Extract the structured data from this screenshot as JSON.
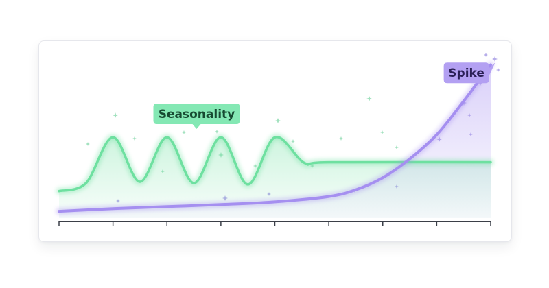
{
  "chart_data": {
    "type": "line",
    "title": "",
    "xlabel": "",
    "ylabel": "",
    "grid": false,
    "x": [
      0,
      1,
      2,
      3,
      4,
      5,
      6,
      7,
      8
    ],
    "xlim": [
      0,
      8
    ],
    "ylim": [
      0,
      10
    ],
    "series": [
      {
        "points": [
          [
            0,
            1.8
          ],
          [
            0.5,
            2.4
          ],
          [
            1,
            5.8
          ],
          [
            1.5,
            2.5
          ],
          [
            2,
            5.8
          ],
          [
            2.5,
            2.4
          ],
          [
            3,
            5.8
          ],
          [
            3.5,
            2.3
          ],
          [
            4,
            5.8
          ],
          [
            4.55,
            3.9
          ],
          [
            5,
            3.95
          ],
          [
            8,
            3.95
          ]
        ]
      },
      {
        "points": [
          [
            0,
            0.3
          ],
          [
            1,
            0.5
          ],
          [
            2,
            0.65
          ],
          [
            3,
            0.8
          ],
          [
            4,
            1.0
          ],
          [
            5,
            1.4
          ],
          [
            5.5,
            1.9
          ],
          [
            6,
            2.8
          ],
          [
            6.5,
            4.2
          ],
          [
            7,
            6.0
          ],
          [
            7.5,
            8.5
          ],
          [
            8,
            11.2
          ]
        ]
      }
    ],
    "annotations": [
      {
        "text": "Seasonality",
        "x": 2.55,
        "y": 7.55
      },
      {
        "text": "Spike",
        "x": 7.55,
        "y": 10.6
      }
    ]
  },
  "colors": {
    "seasonality": "#6ee0a0",
    "seasonality_label_bg": "#84e8b4",
    "seasonality_label_text": "#174a32",
    "spike": "#a58ff0",
    "spike_label_bg": "#b3a0f2",
    "spike_label_text": "#2a1f55",
    "axis": "#3b3f48",
    "spark_green": "#8ad9ae",
    "spark_purple": "#a397e3"
  }
}
